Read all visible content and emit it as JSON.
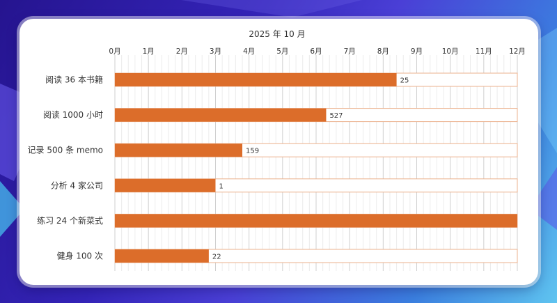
{
  "colors": {
    "bar": "#dc6d2a",
    "bar_outline": "#ebb08c",
    "grid_major": "#cfcfcf",
    "grid_minor": "#ececec",
    "text": "#333333"
  },
  "chart_data": {
    "type": "bar",
    "orientation": "horizontal",
    "title": "2025 年 10 月",
    "x_ticks": [
      "0月",
      "1月",
      "2月",
      "3月",
      "4月",
      "5月",
      "6月",
      "7月",
      "8月",
      "9月",
      "10月",
      "11月",
      "12月"
    ],
    "xlim": [
      0,
      12
    ],
    "categories": [
      "阅读 36 本书籍",
      "阅读 1000 小时",
      "记录 500 条 memo",
      "分析 4 家公司",
      "练习 24 个新菜式",
      "健身 100 次"
    ],
    "values": [
      8.4,
      6.3,
      3.8,
      3.0,
      12.0,
      2.8
    ],
    "data_labels": [
      "25",
      "527",
      "159",
      "1",
      "",
      "22"
    ],
    "track_max": 12,
    "grid": true
  }
}
